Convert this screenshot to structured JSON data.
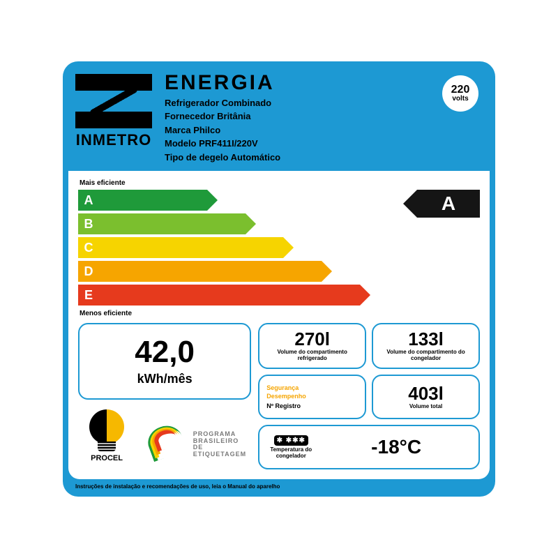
{
  "colors": {
    "frame": "#1d99d3",
    "panel": "#ffffff",
    "text": "#000000",
    "badge_bg": "#151515"
  },
  "header": {
    "inmetro": "INMETRO",
    "title": "ENERGIA",
    "lines": [
      "Refrigerador Combinado",
      "Fornecedor Britânia",
      "Marca Philco",
      "Modelo PRF411I/220V",
      "Tipo de degelo Automático"
    ],
    "voltage_num": "220",
    "voltage_unit": "volts"
  },
  "efficiency": {
    "top_label": "Mais eficiente",
    "bottom_label": "Menos eficiente",
    "rating": "A",
    "rows": [
      {
        "letter": "A",
        "color": "#1f9a3a",
        "width_pct": 34
      },
      {
        "letter": "B",
        "color": "#7bbf2e",
        "width_pct": 46
      },
      {
        "letter": "C",
        "color": "#f6d400",
        "width_pct": 58
      },
      {
        "letter": "D",
        "color": "#f6a500",
        "width_pct": 70
      },
      {
        "letter": "E",
        "color": "#e63a1d",
        "width_pct": 82
      }
    ]
  },
  "consumption": {
    "value": "42,0",
    "unit": "kWh/mês"
  },
  "boxes": {
    "fridge_vol": {
      "value": "270l",
      "desc": "Volume do compartimento refrigerado"
    },
    "freezer_vol": {
      "value": "133l",
      "desc": "Volume do compartimento do congelador"
    },
    "safety": {
      "l1": "Segurança",
      "l2": "Desempenho",
      "reg": "Nº Registro"
    },
    "total_vol": {
      "value": "403l",
      "desc": "Volume total"
    },
    "temp": {
      "stars": "✱ ✱✱✱",
      "desc": "Temperatura do congelador",
      "value": "-18°C"
    }
  },
  "logos": {
    "procel": "PROCEL",
    "pbe_l1": "PROGRAMA",
    "pbe_l2": "BRASILEIRO DE",
    "pbe_l3": "ETIQUETAGEM",
    "pbe_colors": [
      "#1f9a3a",
      "#f6d400",
      "#f6a500",
      "#e63a1d"
    ]
  },
  "footer": "Instruções de instalação e recomendações de uso, leia o Manual do aparelho"
}
